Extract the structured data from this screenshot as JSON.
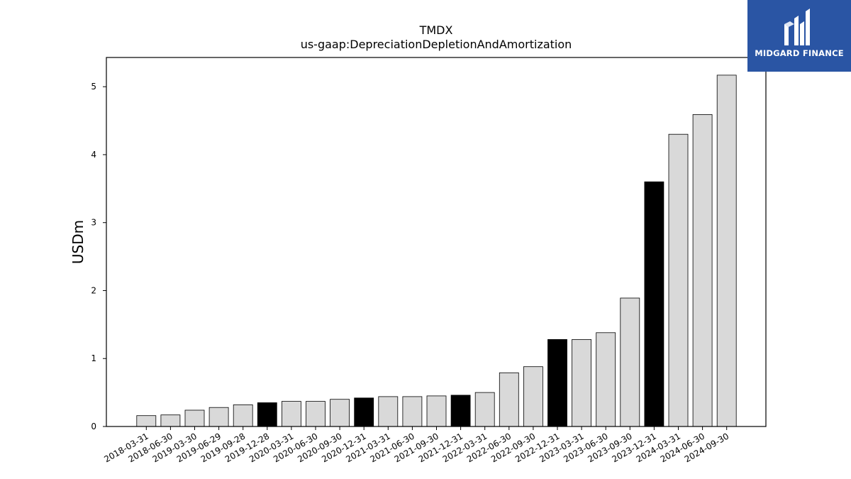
{
  "logo": {
    "text": "MIDGARD FINANCE",
    "bg_color": "#2a55a4"
  },
  "chart_data": {
    "type": "bar",
    "title": "TMDX",
    "subtitle": "us-gaap:DepreciationDepletionAndAmortization",
    "xlabel": "",
    "ylabel": "USDm",
    "ylim": [
      0,
      5.43
    ],
    "yticks": [
      0,
      1,
      2,
      3,
      4,
      5
    ],
    "grid": false,
    "categories": [
      "2018-03-31",
      "2018-06-30",
      "2019-03-30",
      "2019-06-29",
      "2019-09-28",
      "2019-12-28",
      "2020-03-31",
      "2020-06-30",
      "2020-09-30",
      "2020-12-31",
      "2021-03-31",
      "2021-06-30",
      "2021-09-30",
      "2021-12-31",
      "2022-03-31",
      "2022-06-30",
      "2022-09-30",
      "2022-12-31",
      "2023-03-31",
      "2023-06-30",
      "2023-09-30",
      "2023-12-31",
      "2024-03-31",
      "2024-06-30",
      "2024-09-30"
    ],
    "values": [
      0.16,
      0.17,
      0.24,
      0.28,
      0.32,
      0.35,
      0.37,
      0.37,
      0.4,
      0.42,
      0.44,
      0.44,
      0.45,
      0.46,
      0.5,
      0.79,
      0.88,
      1.28,
      1.28,
      1.38,
      1.89,
      3.6,
      4.3,
      4.59,
      5.17
    ],
    "highlighted": [
      false,
      false,
      false,
      false,
      false,
      true,
      false,
      false,
      false,
      true,
      false,
      false,
      false,
      true,
      false,
      false,
      false,
      true,
      false,
      false,
      false,
      true,
      false,
      false,
      false
    ],
    "colors": {
      "bar": "#d9d9d9",
      "highlight": "#000000",
      "edge": "#000000"
    }
  }
}
